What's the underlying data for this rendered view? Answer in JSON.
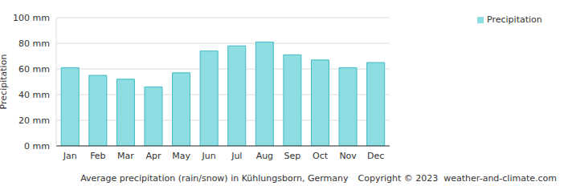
{
  "chart_data": {
    "type": "bar",
    "title": "Average precipitation (rain/snow) in Kühlungsborn, Germany",
    "annotations": [
      "Copyright © 2023  weather-and-climate.com"
    ],
    "y_label": "Precipitation",
    "categories": [
      "Jan",
      "Feb",
      "Mar",
      "Apr",
      "May",
      "Jun",
      "Jul",
      "Aug",
      "Sep",
      "Oct",
      "Nov",
      "Dec"
    ],
    "series": [
      {
        "name": "Precipitation",
        "color": "#8ddde2",
        "values": [
          61,
          55,
          52,
          46,
          57,
          74,
          78,
          81,
          71,
          67,
          61,
          65
        ]
      }
    ],
    "ylim": [
      0,
      100
    ],
    "yticks": [
      {
        "value": 0,
        "label": "0 mm"
      },
      {
        "value": 20,
        "label": "20 mm"
      },
      {
        "value": 40,
        "label": "40 mm"
      },
      {
        "value": 60,
        "label": "60 mm"
      },
      {
        "value": 80,
        "label": "80 mm"
      },
      {
        "value": 100,
        "label": "100 mm"
      }
    ],
    "grid": true,
    "legend": "upper right"
  }
}
